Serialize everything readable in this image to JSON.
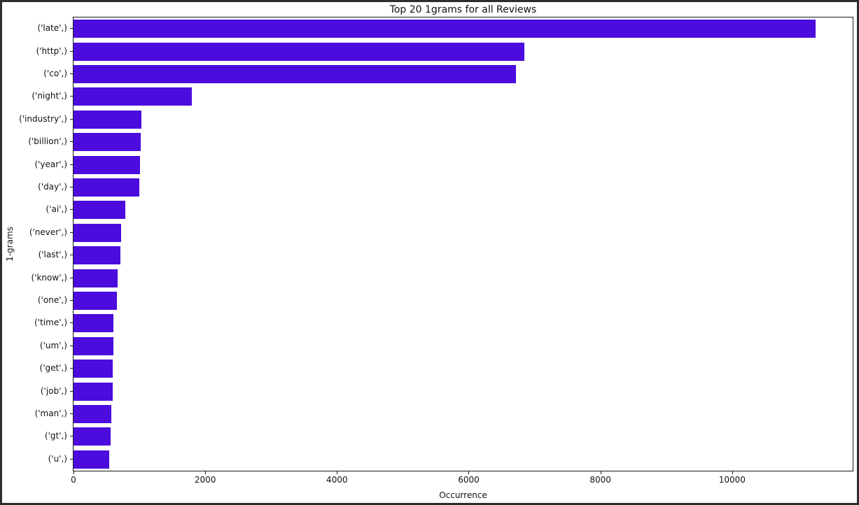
{
  "window": {
    "border_color": "#2d2d2d",
    "background_color": "#ffffff"
  },
  "chart_data": {
    "type": "bar",
    "orientation": "horizontal",
    "title": "Top 20 1grams for all Reviews",
    "xlabel": "Occurrence",
    "ylabel": "1-grams",
    "categories": [
      "('late',)",
      "('http',)",
      "('co',)",
      "('night',)",
      "('industry',)",
      "('billion',)",
      "('year',)",
      "('day',)",
      "('ai',)",
      "('never',)",
      "('last',)",
      "('know',)",
      "('one',)",
      "('time',)",
      "('um',)",
      "('get',)",
      "('job',)",
      "('man',)",
      "('gt',)",
      "('u',)"
    ],
    "values": [
      11265,
      6850,
      6715,
      1800,
      1030,
      1020,
      1008,
      997,
      785,
      720,
      710,
      668,
      654,
      610,
      605,
      600,
      598,
      573,
      560,
      540
    ],
    "xlim": [
      0,
      11830
    ],
    "xticks": [
      0,
      2000,
      4000,
      6000,
      8000,
      10000
    ],
    "bar_color": "#4b0cdd",
    "bar_height_ratio": 0.8,
    "grid": false,
    "legend": null
  }
}
